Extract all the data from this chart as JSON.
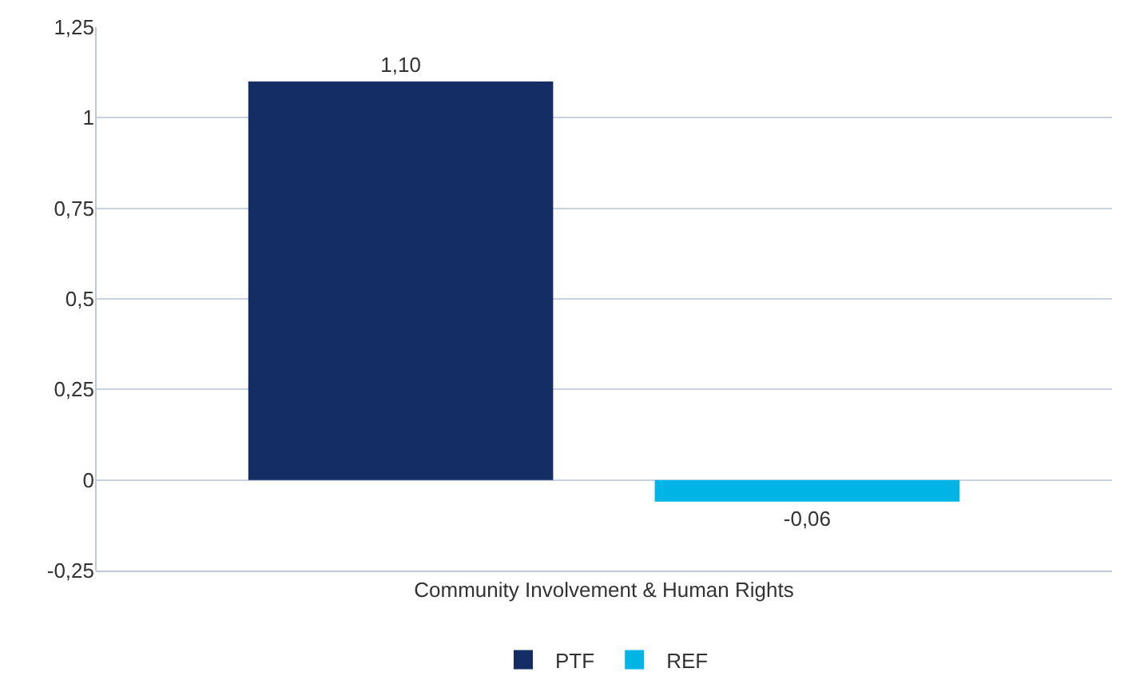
{
  "chart_data": {
    "type": "bar",
    "categories": [
      "Community Involvement & Human Rights"
    ],
    "series": [
      {
        "name": "PTF",
        "color": "#142d65",
        "values": [
          1.1
        ],
        "value_labels": [
          "1,10"
        ]
      },
      {
        "name": "REF",
        "color": "#00b5e6",
        "values": [
          -0.06
        ],
        "value_labels": [
          "-0,06"
        ]
      }
    ],
    "ylim": [
      -0.25,
      1.25
    ],
    "yticks": [
      {
        "value": -0.25,
        "label": "-0,25"
      },
      0,
      {
        "value": 0.25,
        "label": "0,25"
      },
      {
        "value": 0.5,
        "label": "0,5"
      },
      {
        "value": 0.75,
        "label": "0,75"
      },
      1,
      {
        "value": 1.25,
        "label": "1,25"
      }
    ],
    "grid": "y",
    "legend": "bottom"
  }
}
